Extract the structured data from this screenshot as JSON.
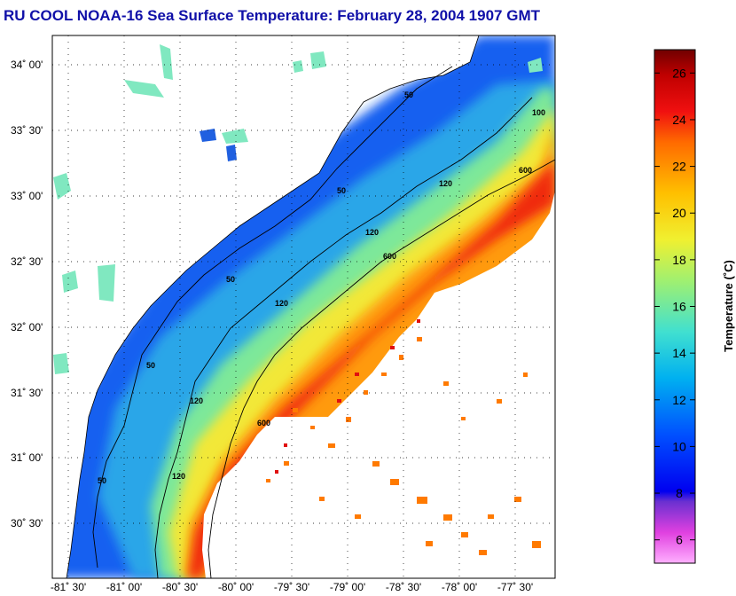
{
  "title": "RU COOL  NOAA-16  Sea Surface Temperature:  February 28, 2004 1907 GMT",
  "map": {
    "lat_labels": [
      "34˚ 00'",
      "33˚ 30'",
      "33˚ 00'",
      "32˚ 30'",
      "32˚ 00'",
      "31˚ 30'",
      "31˚ 00'",
      "30˚ 30'"
    ],
    "lon_labels": [
      "-81˚ 30'",
      "-81˚ 00'",
      "-80˚ 30'",
      "-80˚ 00'",
      "-79˚ 30'",
      "-79˚ 00'",
      "-78˚ 30'",
      "-78˚ 00'",
      "-77˚ 30'"
    ],
    "contour_labels": [
      "50",
      "50",
      "50",
      "50",
      "50",
      "120",
      "120",
      "120",
      "120",
      "120",
      "600",
      "600",
      "600",
      "100"
    ]
  },
  "colorbar": {
    "title": "Temperature (˚C)",
    "ticks": [
      "26",
      "24",
      "22",
      "20",
      "18",
      "16",
      "14",
      "12",
      "10",
      "8",
      "6"
    ],
    "min": 5,
    "max": 27
  }
}
